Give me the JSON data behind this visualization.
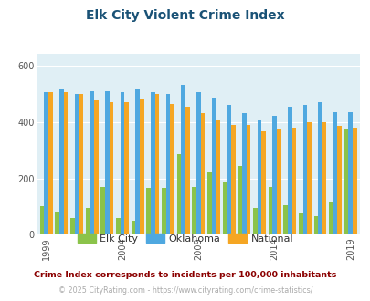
{
  "title": "Elk City Violent Crime Index",
  "years": [
    1999,
    2000,
    2001,
    2002,
    2003,
    2004,
    2005,
    2006,
    2007,
    2008,
    2009,
    2010,
    2011,
    2012,
    2013,
    2014,
    2015,
    2016,
    2017,
    2018,
    2019
  ],
  "elk_city": [
    100,
    83,
    60,
    95,
    170,
    60,
    50,
    165,
    165,
    285,
    170,
    220,
    190,
    245,
    95,
    170,
    105,
    80,
    65,
    115,
    375
  ],
  "oklahoma": [
    505,
    515,
    500,
    510,
    510,
    505,
    515,
    505,
    500,
    530,
    505,
    485,
    460,
    430,
    405,
    420,
    455,
    460,
    470,
    435,
    435
  ],
  "national": [
    505,
    505,
    500,
    475,
    470,
    470,
    480,
    500,
    465,
    455,
    430,
    405,
    390,
    390,
    365,
    375,
    380,
    400,
    400,
    385,
    380
  ],
  "elk_city_color": "#8bc34a",
  "oklahoma_color": "#4fa8e0",
  "national_color": "#f5a623",
  "bg_color": "#e0eff5",
  "title_color": "#1a5276",
  "subtitle_color": "#8B0000",
  "footer_color": "#aaaaaa",
  "yticks": [
    0,
    200,
    400,
    600
  ],
  "ytick_labels": [
    "0",
    "200",
    "400",
    "600"
  ],
  "ylim": [
    0,
    640
  ],
  "xlabel_ticks": [
    1999,
    2004,
    2009,
    2014,
    2019
  ],
  "legend_labels": [
    "Elk City",
    "Oklahoma",
    "National"
  ],
  "subtitle": "Crime Index corresponds to incidents per 100,000 inhabitants",
  "footer": "© 2025 CityRating.com - https://www.cityrating.com/crime-statistics/"
}
